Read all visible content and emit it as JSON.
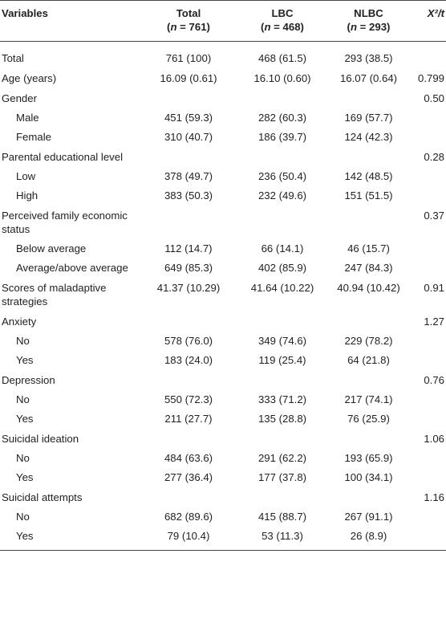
{
  "table": {
    "headers": {
      "variables": "Variables",
      "total": "Total",
      "total_n": "(n = 761)",
      "lbc": "LBC",
      "lbc_n": "(n = 468)",
      "nlbc": "NLBC",
      "nlbc_n": "(n = 293)",
      "chi": "X²/t"
    },
    "rows": [
      {
        "label": "Total",
        "total": "761 (100)",
        "lbc": "468 (61.5)",
        "nlbc": "293 (38.5)",
        "chi": ""
      },
      {
        "label": "Age (years)",
        "total": "16.09 (0.61)",
        "lbc": "16.10 (0.60)",
        "nlbc": "16.07 (0.64)",
        "chi": "0.799"
      },
      {
        "label": "Gender",
        "total": "",
        "lbc": "",
        "nlbc": "",
        "chi": "0.50"
      },
      {
        "label": "Male",
        "total": "451 (59.3)",
        "lbc": "282 (60.3)",
        "nlbc": "169 (57.7)",
        "chi": ""
      },
      {
        "label": "Female",
        "total": "310 (40.7)",
        "lbc": "186 (39.7)",
        "nlbc": "124 (42.3)",
        "chi": ""
      },
      {
        "label": "Parental educational level",
        "total": "",
        "lbc": "",
        "nlbc": "",
        "chi": "0.28"
      },
      {
        "label": "Low",
        "total": "378 (49.7)",
        "lbc": "236 (50.4)",
        "nlbc": "142 (48.5)",
        "chi": ""
      },
      {
        "label": "High",
        "total": "383 (50.3)",
        "lbc": "232 (49.6)",
        "nlbc": "151 (51.5)",
        "chi": ""
      },
      {
        "label": "Perceived family economic status",
        "total": "",
        "lbc": "",
        "nlbc": "",
        "chi": "0.37"
      },
      {
        "label": "Below average",
        "total": "112 (14.7)",
        "lbc": "66 (14.1)",
        "nlbc": "46 (15.7)",
        "chi": ""
      },
      {
        "label": "Average/above average",
        "total": "649 (85.3)",
        "lbc": "402 (85.9)",
        "nlbc": "247 (84.3)",
        "chi": ""
      },
      {
        "label": "Scores of maladaptive strategies",
        "total": "41.37 (10.29)",
        "lbc": "41.64 (10.22)",
        "nlbc": "40.94 (10.42)",
        "chi": "0.91"
      },
      {
        "label": "Anxiety",
        "total": "",
        "lbc": "",
        "nlbc": "",
        "chi": "1.27"
      },
      {
        "label": "No",
        "total": "578 (76.0)",
        "lbc": "349 (74.6)",
        "nlbc": "229 (78.2)",
        "chi": ""
      },
      {
        "label": "Yes",
        "total": "183 (24.0)",
        "lbc": "119 (25.4)",
        "nlbc": "64 (21.8)",
        "chi": ""
      },
      {
        "label": "Depression",
        "total": "",
        "lbc": "",
        "nlbc": "",
        "chi": "0.76"
      },
      {
        "label": "No",
        "total": "550 (72.3)",
        "lbc": "333 (71.2)",
        "nlbc": "217 (74.1)",
        "chi": ""
      },
      {
        "label": "Yes",
        "total": "211 (27.7)",
        "lbc": "135 (28.8)",
        "nlbc": "76 (25.9)",
        "chi": ""
      },
      {
        "label": "Suicidal ideation",
        "total": "",
        "lbc": "",
        "nlbc": "",
        "chi": "1.06"
      },
      {
        "label": "No",
        "total": "484 (63.6)",
        "lbc": "291 (62.2)",
        "nlbc": "193 (65.9)",
        "chi": ""
      },
      {
        "label": "Yes",
        "total": "277 (36.4)",
        "lbc": "177 (37.8)",
        "nlbc": "100 (34.1)",
        "chi": ""
      },
      {
        "label": "Suicidal attempts",
        "total": "",
        "lbc": "",
        "nlbc": "",
        "chi": "1.16"
      },
      {
        "label": "No",
        "total": "682 (89.6)",
        "lbc": "415 (88.7)",
        "nlbc": "267 (91.1)",
        "chi": ""
      },
      {
        "label": "Yes",
        "total": "79 (10.4)",
        "lbc": "53 (11.3)",
        "nlbc": "26 (8.9)",
        "chi": ""
      }
    ]
  }
}
